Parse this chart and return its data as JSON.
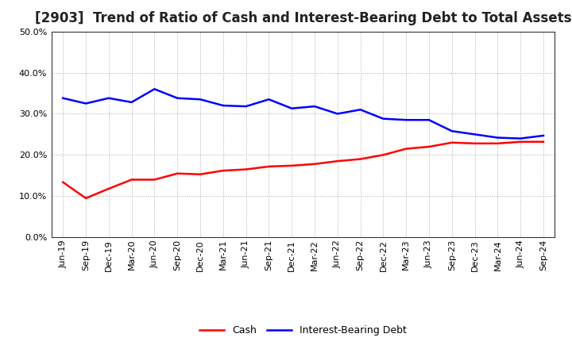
{
  "title": "[2903]  Trend of Ratio of Cash and Interest-Bearing Debt to Total Assets",
  "x_labels": [
    "Jun-19",
    "Sep-19",
    "Dec-19",
    "Mar-20",
    "Jun-20",
    "Sep-20",
    "Dec-20",
    "Mar-21",
    "Jun-21",
    "Sep-21",
    "Dec-21",
    "Mar-22",
    "Jun-22",
    "Sep-22",
    "Dec-22",
    "Mar-23",
    "Jun-23",
    "Sep-23",
    "Dec-23",
    "Mar-24",
    "Jun-24",
    "Sep-24"
  ],
  "cash": [
    0.134,
    0.095,
    0.118,
    0.14,
    0.14,
    0.155,
    0.153,
    0.162,
    0.165,
    0.172,
    0.174,
    0.178,
    0.185,
    0.19,
    0.2,
    0.215,
    0.22,
    0.23,
    0.228,
    0.228,
    0.232,
    0.232
  ],
  "debt": [
    0.338,
    0.325,
    0.338,
    0.328,
    0.36,
    0.338,
    0.335,
    0.32,
    0.318,
    0.335,
    0.313,
    0.318,
    0.3,
    0.31,
    0.288,
    0.285,
    0.285,
    0.258,
    0.25,
    0.242,
    0.24,
    0.247
  ],
  "cash_color": "#FF0000",
  "debt_color": "#0000FF",
  "ylim": [
    0.0,
    0.5
  ],
  "yticks": [
    0.0,
    0.1,
    0.2,
    0.3,
    0.4,
    0.5
  ],
  "background_color": "#FFFFFF",
  "plot_bg_color": "#FFFFFF",
  "grid_color": "#AAAAAA",
  "title_fontsize": 12,
  "tick_fontsize": 8,
  "legend_labels": [
    "Cash",
    "Interest-Bearing Debt"
  ]
}
